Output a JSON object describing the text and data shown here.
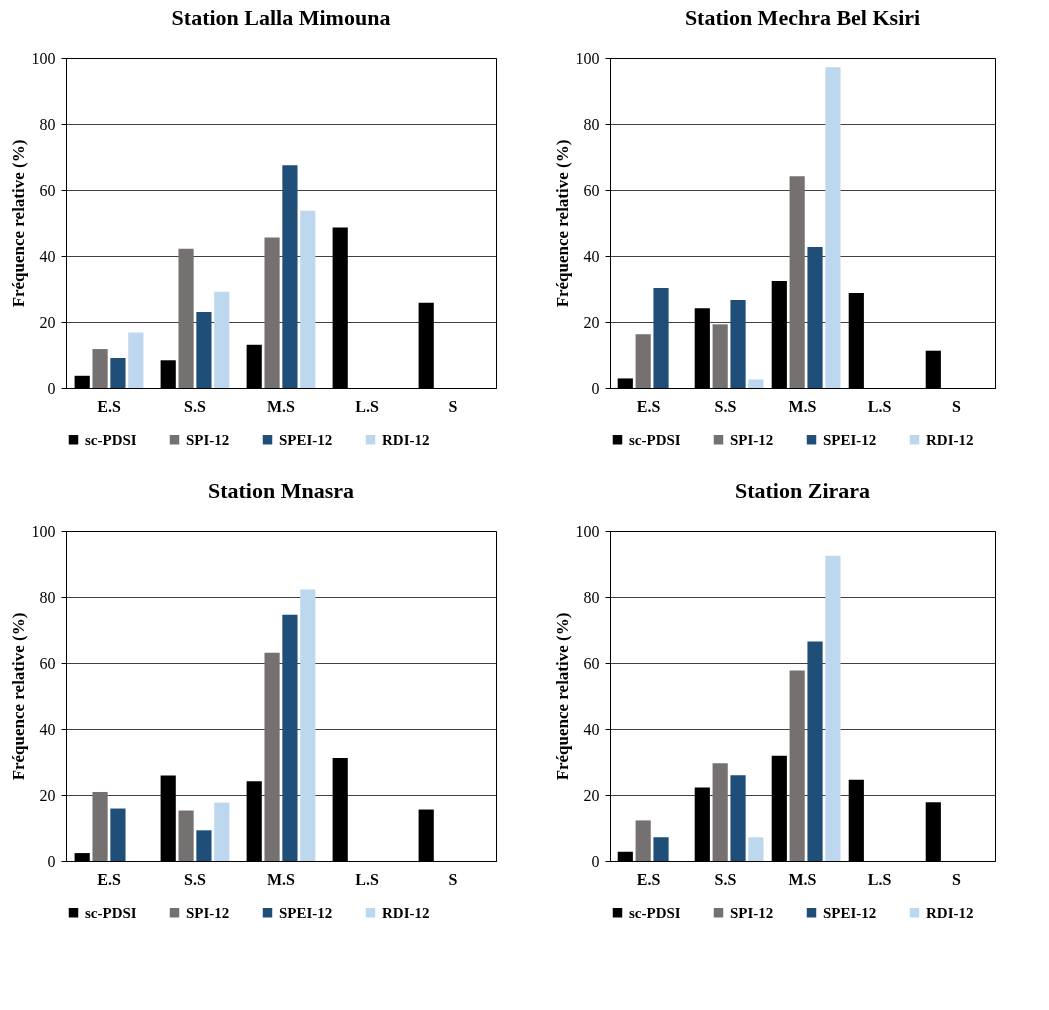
{
  "chart_data": [
    {
      "type": "bar",
      "title": "Station Lalla Mimouna",
      "ylabel": "Fréquence relative (%)",
      "categories": [
        "E.S",
        "S.S",
        "M.S",
        "L.S",
        "S"
      ],
      "ylim": [
        0,
        100
      ],
      "yticks": [
        0,
        20,
        40,
        60,
        80,
        100
      ],
      "grid": "y",
      "legend": "bottom",
      "series": [
        {
          "name": "sc-PDSI",
          "color": "#000000",
          "values": [
            3.7,
            8.4,
            13.1,
            48.6,
            25.8
          ]
        },
        {
          "name": "SPI-12",
          "color": "#767171",
          "values": [
            11.8,
            42.2,
            45.6,
            null,
            null
          ]
        },
        {
          "name": "SPEI-12",
          "color": "#1f4e79",
          "values": [
            9.1,
            23.0,
            67.5,
            null,
            null
          ]
        },
        {
          "name": "RDI-12",
          "color": "#bdd7ee",
          "values": [
            16.8,
            29.2,
            53.7,
            null,
            null
          ]
        }
      ]
    },
    {
      "type": "bar",
      "title": "Station Mechra Bel Ksiri",
      "ylabel": "Fréquence relative (%)",
      "categories": [
        "E.S",
        "S.S",
        "M.S",
        "L.S",
        "S"
      ],
      "ylim": [
        0,
        100
      ],
      "yticks": [
        0,
        20,
        40,
        60,
        80,
        100
      ],
      "grid": "y",
      "legend": "bottom",
      "series": [
        {
          "name": "sc-PDSI",
          "color": "#000000",
          "values": [
            2.9,
            24.2,
            32.4,
            28.8,
            11.3
          ]
        },
        {
          "name": "SPI-12",
          "color": "#767171",
          "values": [
            16.3,
            19.3,
            64.2,
            null,
            null
          ]
        },
        {
          "name": "SPEI-12",
          "color": "#1f4e79",
          "values": [
            30.3,
            26.7,
            42.7,
            null,
            null
          ]
        },
        {
          "name": "RDI-12",
          "color": "#bdd7ee",
          "values": [
            null,
            2.6,
            97.2,
            null,
            null
          ]
        }
      ]
    },
    {
      "type": "bar",
      "title": "Station Mnasra",
      "ylabel": "Fréquence relative (%)",
      "categories": [
        "E.S",
        "S.S",
        "M.S",
        "L.S",
        "S"
      ],
      "ylim": [
        0,
        100
      ],
      "yticks": [
        0,
        20,
        40,
        60,
        80,
        100
      ],
      "grid": "y",
      "legend": "bottom",
      "series": [
        {
          "name": "sc-PDSI",
          "color": "#000000",
          "values": [
            2.4,
            25.9,
            24.2,
            31.2,
            15.6
          ]
        },
        {
          "name": "SPI-12",
          "color": "#767171",
          "values": [
            20.9,
            15.3,
            63.1,
            null,
            null
          ]
        },
        {
          "name": "SPEI-12",
          "color": "#1f4e79",
          "values": [
            15.9,
            9.3,
            74.6,
            null,
            null
          ]
        },
        {
          "name": "RDI-12",
          "color": "#bdd7ee",
          "values": [
            null,
            17.7,
            82.3,
            null,
            null
          ]
        }
      ]
    },
    {
      "type": "bar",
      "title": "Station Zirara",
      "ylabel": "Fréquence relative (%)",
      "categories": [
        "E.S",
        "S.S",
        "M.S",
        "L.S",
        "S"
      ],
      "ylim": [
        0,
        100
      ],
      "yticks": [
        0,
        20,
        40,
        60,
        80,
        100
      ],
      "grid": "y",
      "legend": "bottom",
      "series": [
        {
          "name": "sc-PDSI",
          "color": "#000000",
          "values": [
            2.8,
            22.3,
            31.9,
            24.6,
            17.8
          ]
        },
        {
          "name": "SPI-12",
          "color": "#767171",
          "values": [
            12.3,
            29.6,
            57.7,
            null,
            null
          ]
        },
        {
          "name": "SPEI-12",
          "color": "#1f4e79",
          "values": [
            7.2,
            26.0,
            66.5,
            null,
            null
          ]
        },
        {
          "name": "RDI-12",
          "color": "#bdd7ee",
          "values": [
            null,
            7.2,
            92.5,
            null,
            null
          ]
        }
      ]
    }
  ]
}
